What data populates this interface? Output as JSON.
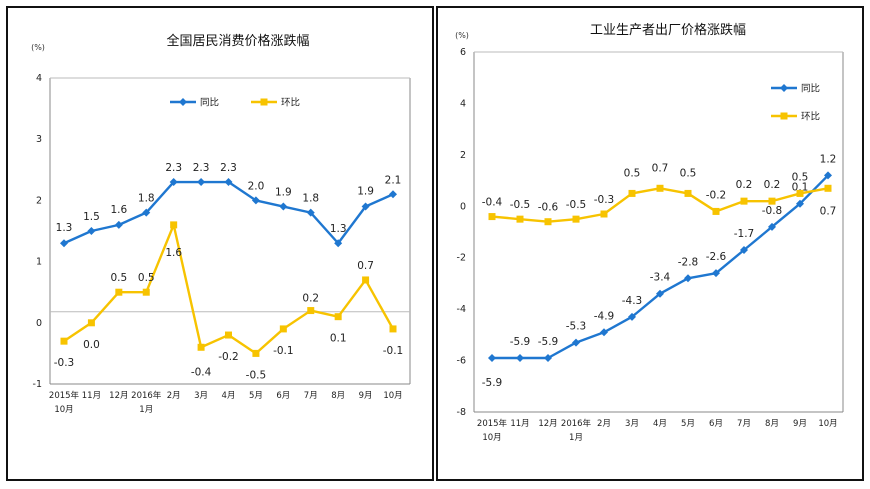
{
  "chart_data": [
    {
      "type": "line",
      "title": "全国居民消费价格涨跌幅",
      "unit": "(%)",
      "ylim": [
        -1,
        4
      ],
      "yticks": [
        "4",
        "3",
        "2",
        "1",
        "0",
        "-1"
      ],
      "grid": false,
      "legend_position": "top",
      "categories": [
        [
          "2015年",
          "10月"
        ],
        [
          "11月"
        ],
        [
          "12月"
        ],
        [
          "2016年",
          "1月"
        ],
        [
          "2月"
        ],
        [
          "3月"
        ],
        [
          "4月"
        ],
        [
          "5月"
        ],
        [
          "6月"
        ],
        [
          "7月"
        ],
        [
          "8月"
        ],
        [
          "9月"
        ],
        [
          "10月"
        ]
      ],
      "series": [
        {
          "name": "同比",
          "color": "#1f77d0",
          "marker": "diamond",
          "values": [
            1.3,
            1.5,
            1.6,
            1.8,
            2.3,
            2.3,
            2.3,
            2.0,
            1.9,
            1.8,
            1.3,
            1.9,
            2.1
          ],
          "labels": [
            "1.3",
            "1.5",
            "1.6",
            "1.8",
            "2.3",
            "2.3",
            "2.3",
            "2.0",
            "1.9",
            "1.8",
            "1.3",
            "1.9",
            "2.1"
          ]
        },
        {
          "name": "环比",
          "color": "#f7c300",
          "marker": "square",
          "values": [
            -0.3,
            0.0,
            0.5,
            0.5,
            1.6,
            -0.4,
            -0.2,
            -0.5,
            -0.1,
            0.2,
            0.1,
            0.7,
            -0.1
          ],
          "labels": [
            "-0.3",
            "0.0",
            "0.5",
            "0.5",
            "1.6",
            "-0.4",
            "-0.2",
            "-0.5",
            "-0.1",
            "0.2",
            "0.1",
            "0.7",
            "-0.1"
          ]
        }
      ]
    },
    {
      "type": "line",
      "title": "工业生产者出厂价格涨跌幅",
      "unit": "(%)",
      "ylim": [
        -8,
        6
      ],
      "yticks": [
        "6",
        "4",
        "2",
        "0",
        "-2",
        "-4",
        "-6",
        "-8"
      ],
      "grid": false,
      "legend_position": "top-right",
      "categories": [
        [
          "2015年",
          "10月"
        ],
        [
          "11月"
        ],
        [
          "12月"
        ],
        [
          "2016年",
          "1月"
        ],
        [
          "2月"
        ],
        [
          "3月"
        ],
        [
          "4月"
        ],
        [
          "5月"
        ],
        [
          "6月"
        ],
        [
          "7月"
        ],
        [
          "8月"
        ],
        [
          "9月"
        ],
        [
          "10月"
        ]
      ],
      "series": [
        {
          "name": "同比",
          "color": "#1f77d0",
          "marker": "diamond",
          "values": [
            -5.9,
            -5.9,
            -5.9,
            -5.3,
            -4.9,
            -4.3,
            -3.4,
            -2.8,
            -2.6,
            -1.7,
            -0.8,
            0.1,
            1.2
          ],
          "labels": [
            "-5.9",
            "-5.9",
            "-5.9",
            "-5.3",
            "-4.9",
            "-4.3",
            "-3.4",
            "-2.8",
            "-2.6",
            "-1.7",
            "-0.8",
            "0.1",
            "1.2"
          ]
        },
        {
          "name": "环比",
          "color": "#f7c300",
          "marker": "square",
          "values": [
            -0.4,
            -0.5,
            -0.6,
            -0.5,
            -0.3,
            0.5,
            0.7,
            0.5,
            -0.2,
            0.2,
            0.2,
            0.5,
            0.7
          ],
          "labels": [
            "-0.4",
            "-0.5",
            "-0.6",
            "-0.5",
            "-0.3",
            "0.5",
            "0.7",
            "0.5",
            "-0.2",
            "0.2",
            "0.2",
            "0.5",
            "0.7"
          ]
        }
      ]
    }
  ]
}
